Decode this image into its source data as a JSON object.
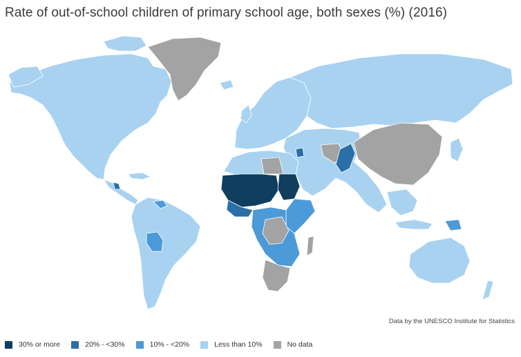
{
  "title": "Rate of out-of-school children of primary school age, both sexes (%) (2016)",
  "source": "Data by the UNESCO Institute for Statistics",
  "legend": [
    {
      "label": "30% or more",
      "color": "#0f3e5e"
    },
    {
      "label": "20% - <30%",
      "color": "#2a6fa8"
    },
    {
      "label": "10% - <20%",
      "color": "#4c9ad8"
    },
    {
      "label": "Less than 10%",
      "color": "#a8d2f0"
    },
    {
      "label": "No data",
      "color": "#a3a3a3"
    }
  ],
  "map": {
    "ocean_color": "#ffffff",
    "border_color": "#ffffff",
    "regions": [
      {
        "name": "North America",
        "category": "Less than 10%"
      },
      {
        "name": "Greenland",
        "category": "No data"
      },
      {
        "name": "South America",
        "category": "Less than 10%"
      },
      {
        "name": "Bolivia",
        "category": "10% - <20%"
      },
      {
        "name": "Venezuela",
        "category": "10% - <20%"
      },
      {
        "name": "Guatemala",
        "category": "20% - <30%"
      },
      {
        "name": "Europe",
        "category": "Less than 10%"
      },
      {
        "name": "Russia",
        "category": "Less than 10%"
      },
      {
        "name": "China",
        "category": "No data"
      },
      {
        "name": "Pakistan",
        "category": "20% - <30%"
      },
      {
        "name": "Syria",
        "category": "20% - <30%"
      },
      {
        "name": "Sahel",
        "category": "30% or more"
      },
      {
        "name": "Sudan",
        "category": "30% or more"
      },
      {
        "name": "Libya",
        "category": "No data"
      },
      {
        "name": "Central Africa",
        "category": "10% - <20%"
      },
      {
        "name": "DR Congo",
        "category": "No data"
      },
      {
        "name": "Southern Africa",
        "category": "No data"
      },
      {
        "name": "Australia",
        "category": "Less than 10%"
      },
      {
        "name": "Papua New Guinea",
        "category": "10% - <20%"
      }
    ]
  }
}
